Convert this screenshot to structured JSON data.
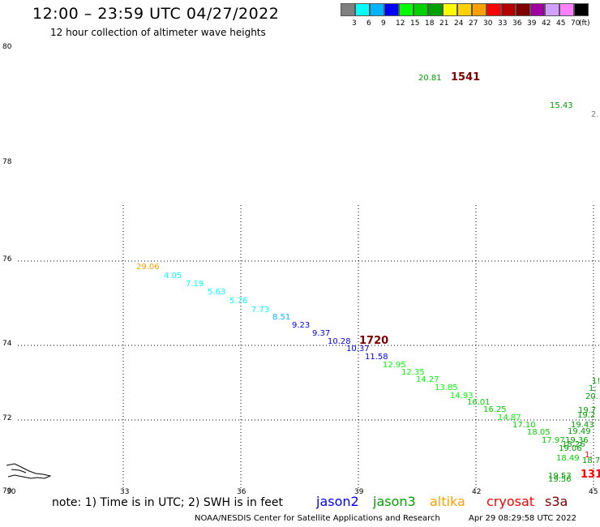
{
  "title": "12:00 – 23:59 UTC 04/27/2022",
  "subtitle": "12 hour collection of altimeter wave heights",
  "legend": {
    "colors": [
      "#808080",
      "#00ffff",
      "#00b4ff",
      "#0000ff",
      "#00ff00",
      "#00d200",
      "#00a000",
      "#ffff00",
      "#ffd000",
      "#ffa000",
      "#ff0000",
      "#b40000",
      "#800000",
      "#a000a0",
      "#d0a0ff",
      "#ff80ff",
      "#000000"
    ],
    "labels": [
      "3",
      "6",
      "9",
      "12",
      "15",
      "18",
      "21",
      "24",
      "27",
      "30",
      "33",
      "36",
      "39",
      "42",
      "45",
      "70"
    ],
    "unit": "(ft)"
  },
  "y_axis": {
    "labels": [
      "80",
      "78",
      "76",
      "74",
      "72",
      "70"
    ]
  },
  "x_axis": {
    "labels": [
      "30",
      "33",
      "36",
      "39",
      "42",
      "45"
    ]
  },
  "swh_points": [
    {
      "v": "20.81",
      "c": "#00a000"
    },
    {
      "v": "1541",
      "c": "#800000"
    },
    {
      "v": "15.43",
      "c": "#00a000"
    },
    {
      "v": "2.",
      "c": "#808080"
    },
    {
      "v": "29.06",
      "c": "#ffa000"
    },
    {
      "v": "4.05",
      "c": "#00ffff"
    },
    {
      "v": "7.19",
      "c": "#00ffff"
    },
    {
      "v": "5.63",
      "c": "#00ffff"
    },
    {
      "v": "5.76",
      "c": "#00ffff"
    },
    {
      "v": "7.73",
      "c": "#00ffff"
    },
    {
      "v": "8.51",
      "c": "#00b4ff"
    },
    {
      "v": "9.23",
      "c": "#0000ff"
    },
    {
      "v": "9.37",
      "c": "#0000ff"
    },
    {
      "v": "10.28",
      "c": "#0000ff"
    },
    {
      "v": "1720",
      "c": "#800000"
    },
    {
      "v": "10.37",
      "c": "#0000ff"
    },
    {
      "v": "11.58",
      "c": "#0000ff"
    },
    {
      "v": "12.95",
      "c": "#00ff00"
    },
    {
      "v": "12.35",
      "c": "#00ff00"
    },
    {
      "v": "14.27",
      "c": "#00ff00"
    },
    {
      "v": "13.85",
      "c": "#00ff00"
    },
    {
      "v": "14.93",
      "c": "#00ff00"
    },
    {
      "v": "16.01",
      "c": "#00d200"
    },
    {
      "v": "16.25",
      "c": "#00d200"
    },
    {
      "v": "14.87",
      "c": "#00ff00"
    },
    {
      "v": "17.10",
      "c": "#00d200"
    },
    {
      "v": "18.05",
      "c": "#00d200"
    },
    {
      "v": "17.97",
      "c": "#00d200"
    },
    {
      "v": "18.49",
      "c": "#00d200"
    },
    {
      "v": "19.56",
      "c": "#00a000"
    },
    {
      "v": "19.53",
      "c": "#00a000"
    },
    {
      "v": "131",
      "c": "#ff0000"
    },
    {
      "v": "1!",
      "c": "#00a000"
    },
    {
      "v": "1;",
      "c": "#00a000"
    },
    {
      "v": "20.",
      "c": "#00a000"
    },
    {
      "v": "19.7",
      "c": "#00a000"
    },
    {
      "v": "19.2",
      "c": "#00a000"
    },
    {
      "v": "19.43",
      "c": "#00a000"
    },
    {
      "v": "19.49",
      "c": "#00a000"
    },
    {
      "v": "19.36",
      "c": "#00a000"
    },
    {
      "v": "18.26",
      "c": "#00a000"
    },
    {
      "v": "19.06",
      "c": "#00a000"
    },
    {
      "v": "1;",
      "c": "#ff0000"
    },
    {
      "v": "18.7",
      "c": "#00a000"
    }
  ],
  "note": "note:  1) Time is in UTC;  2) SWH is in feet",
  "satellites": [
    {
      "name": "jason2",
      "color": "#0000ff"
    },
    {
      "name": "jason3",
      "color": "#00a000"
    },
    {
      "name": "altika",
      "color": "#ffa000"
    },
    {
      "name": "cryosat",
      "color": "#ff0000"
    },
    {
      "name": "s3a",
      "color": "#800000"
    }
  ],
  "credit": "NOAA/NESDIS Center for Satellite Applications and Research",
  "timestamp": "Apr 29 08:29:58 UTC 2022"
}
